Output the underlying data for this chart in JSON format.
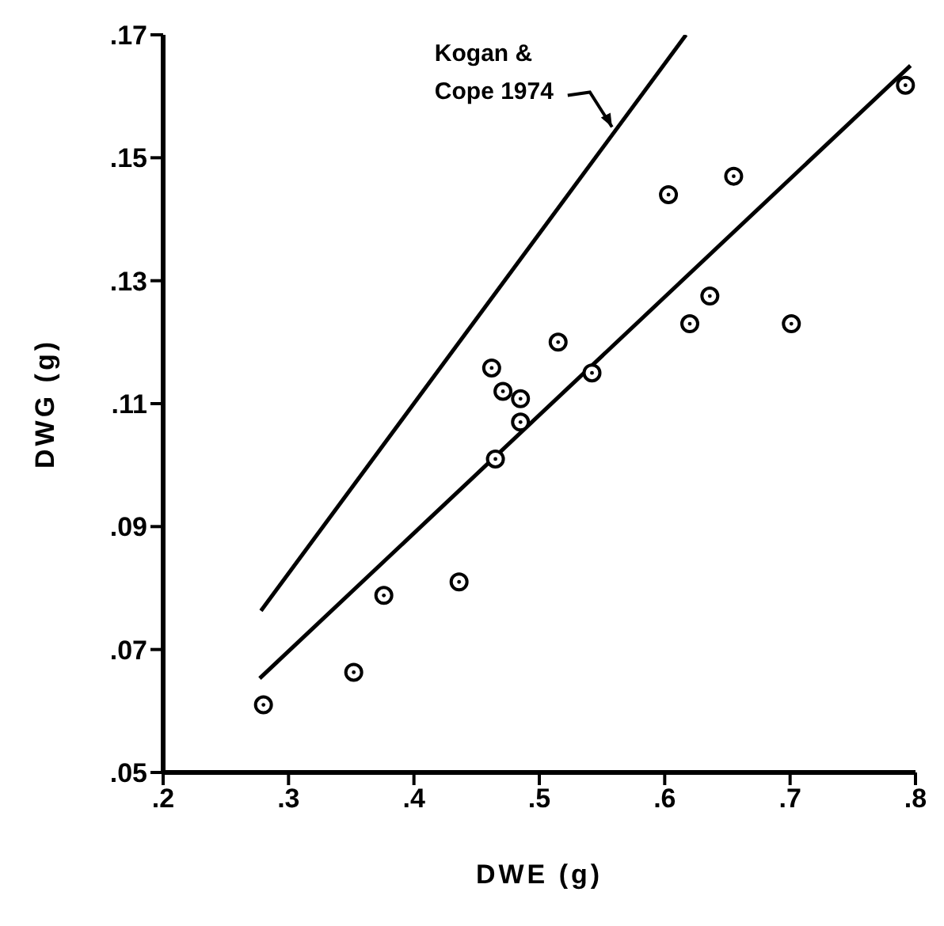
{
  "chart_data": {
    "type": "scatter",
    "xlabel": "DWE (g)",
    "ylabel": "DWG (g)",
    "xlim": [
      0.2,
      0.8
    ],
    "ylim": [
      0.05,
      0.17
    ],
    "xticks": [
      {
        "value": 0.2,
        "label": ".2"
      },
      {
        "value": 0.3,
        "label": ".3"
      },
      {
        "value": 0.4,
        "label": ".4"
      },
      {
        "value": 0.5,
        "label": ".5"
      },
      {
        "value": 0.6,
        "label": ".6"
      },
      {
        "value": 0.7,
        "label": ".7"
      },
      {
        "value": 0.8,
        "label": ".8"
      }
    ],
    "yticks": [
      {
        "value": 0.05,
        "label": ".05"
      },
      {
        "value": 0.07,
        "label": ".07"
      },
      {
        "value": 0.09,
        "label": ".09"
      },
      {
        "value": 0.11,
        "label": ".11"
      },
      {
        "value": 0.13,
        "label": ".13"
      },
      {
        "value": 0.15,
        "label": ".15"
      },
      {
        "value": 0.17,
        "label": ".17"
      }
    ],
    "grid": false,
    "legend": false,
    "annotations": [
      {
        "text": "Kogan &\nCope 1974",
        "x": 0.558,
        "y": 0.155
      }
    ],
    "series": [
      {
        "marker": "circle",
        "color": "#000000",
        "x": [
          0.28,
          0.352,
          0.376,
          0.436,
          0.465,
          0.462,
          0.471,
          0.485,
          0.485,
          0.515,
          0.542,
          0.603,
          0.62,
          0.636,
          0.655,
          0.701,
          0.792
        ],
        "values": [
          0.061,
          0.0663,
          0.0788,
          0.081,
          0.101,
          0.1158,
          0.112,
          0.1108,
          0.107,
          0.12,
          0.115,
          0.144,
          0.123,
          0.1275,
          0.147,
          0.123,
          0.1618
        ]
      },
      {
        "type": "line",
        "marker": "none",
        "color": "#000000",
        "x": [
          0.277,
          0.796
        ],
        "values": [
          0.0653,
          0.165
        ]
      },
      {
        "type": "line",
        "marker": "none",
        "color": "#000000",
        "x": [
          0.278,
          0.617
        ],
        "values": [
          0.0763,
          0.17
        ]
      }
    ]
  }
}
